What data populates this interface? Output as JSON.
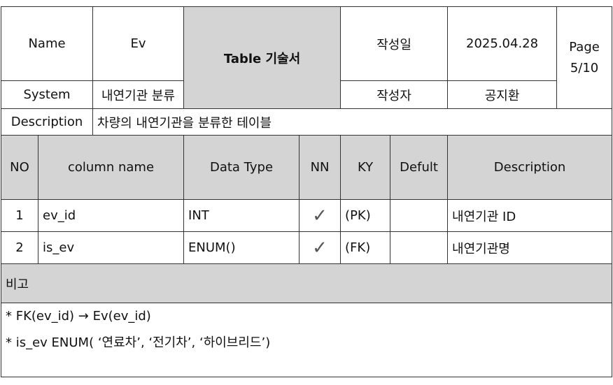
{
  "header": {
    "name_label": "Name",
    "name_value": "Ev",
    "system_label": "System",
    "system_value": "내연기관 분류",
    "table_title": "Table 기술서",
    "created_date_label": "작성일",
    "created_date_value": "2025.04.28",
    "author_label": "작성자",
    "author_value": "공지환",
    "page_label": "Page",
    "page_value": "5/10",
    "description_label": "Description",
    "description_value": "차량의 내연기관을 분류한 테이블"
  },
  "columns_header": {
    "no": "NO",
    "column_name": "column name",
    "data_type": "Data Type",
    "nn": "NN",
    "ky": "KY",
    "default": "Defult",
    "description": "Description"
  },
  "rows": [
    {
      "no": "1",
      "column_name": "ev_id",
      "data_type": "INT",
      "nn": "✓",
      "ky": "(PK)",
      "default": "",
      "description": "내연기관 ID"
    },
    {
      "no": "2",
      "column_name": "is_ev",
      "data_type": "ENUM()",
      "nn": "✓",
      "ky": "(FK)",
      "default": "",
      "description": "내연기관명"
    }
  ],
  "remarks": {
    "label": "비고",
    "lines": [
      "* FK(ev_id) → Ev(ev_id)",
      "* is_ev ENUM( ‘연료차’, ‘전기차’, ‘하이브리드’)"
    ]
  },
  "colors": {
    "header_grey": "#d4d4d4",
    "border": "#333333"
  }
}
